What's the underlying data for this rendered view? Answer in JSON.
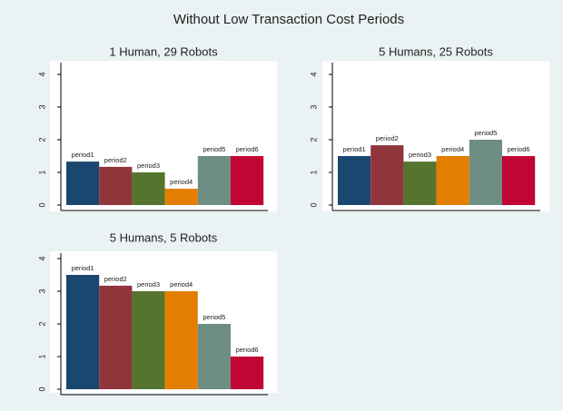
{
  "title": "Without Low Transaction Cost Periods",
  "chart_data": [
    {
      "type": "bar",
      "title": "1 Human, 29 Robots",
      "categories": [
        "period1",
        "period2",
        "period3",
        "period4",
        "period5",
        "period6"
      ],
      "values": [
        1.33,
        1.17,
        1.0,
        0.5,
        1.5,
        1.5
      ],
      "colors": [
        "#1a476f",
        "#90353b",
        "#55752f",
        "#e37e00",
        "#6e8e84",
        "#c10534"
      ],
      "ylim": [
        0,
        4
      ],
      "yticks": [
        0,
        1,
        2,
        3,
        4
      ]
    },
    {
      "type": "bar",
      "title": "5 Humans, 25 Robots",
      "categories": [
        "period1",
        "period2",
        "period3",
        "period4",
        "period5",
        "period6"
      ],
      "values": [
        1.5,
        1.83,
        1.33,
        1.5,
        2.0,
        1.5
      ],
      "colors": [
        "#1a476f",
        "#90353b",
        "#55752f",
        "#e37e00",
        "#6e8e84",
        "#c10534"
      ],
      "ylim": [
        0,
        4
      ],
      "yticks": [
        0,
        1,
        2,
        3,
        4
      ]
    },
    {
      "type": "bar",
      "title": "5 Humans, 5 Robots",
      "categories": [
        "period1",
        "period2",
        "period3",
        "period4",
        "period5",
        "period6"
      ],
      "values": [
        3.5,
        3.17,
        3.0,
        3.0,
        2.0,
        1.0
      ],
      "colors": [
        "#1a476f",
        "#90353b",
        "#55752f",
        "#e37e00",
        "#6e8e84",
        "#c10534"
      ],
      "ylim": [
        0,
        4
      ],
      "yticks": [
        0,
        1,
        2,
        3,
        4
      ]
    }
  ]
}
